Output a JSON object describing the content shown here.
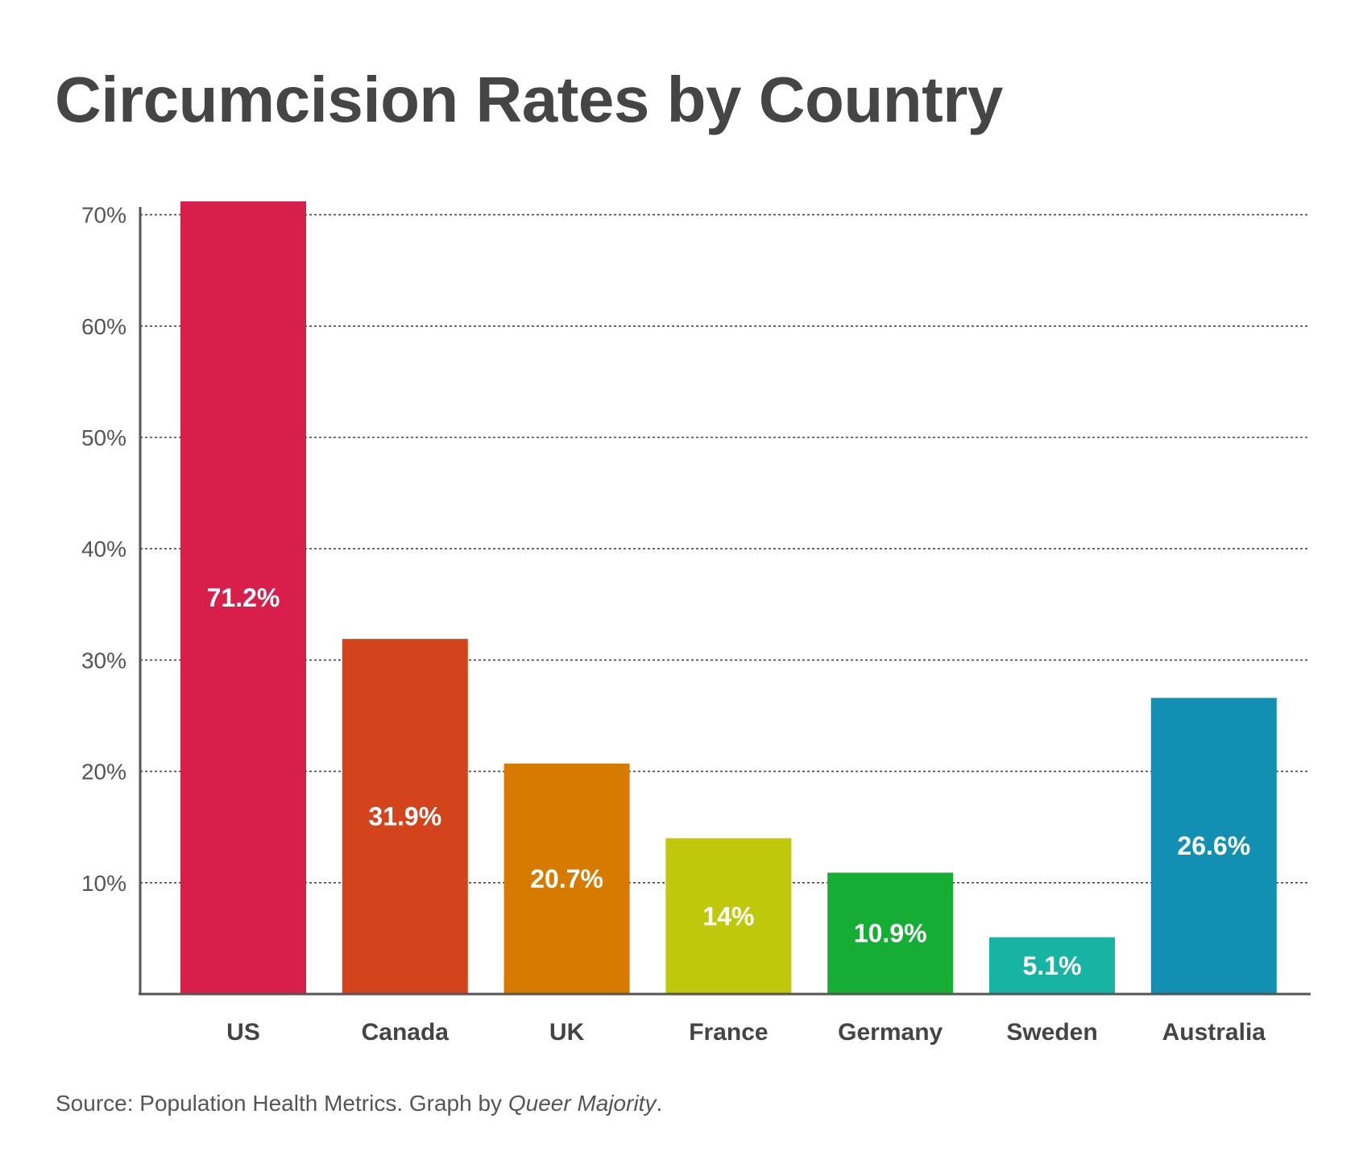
{
  "title": "Circumcision Rates by Country",
  "source": {
    "prefix": "Source: Population Health Metrics. Graph by ",
    "author": "Queer Majority",
    "suffix": "."
  },
  "chart_data": {
    "type": "bar",
    "categories": [
      "US",
      "Canada",
      "UK",
      "France",
      "Germany",
      "Sweden",
      "Australia"
    ],
    "values": [
      71.2,
      31.9,
      20.7,
      14,
      10.9,
      5.1,
      26.6
    ],
    "data_labels": [
      "71.2%",
      "31.9%",
      "20.7%",
      "14%",
      "10.9%",
      "5.1%",
      "26.6%"
    ],
    "colors": [
      "#d81e4b",
      "#d4441c",
      "#d67a00",
      "#c0c80c",
      "#16ad34",
      "#17b3a3",
      "#1290b3"
    ],
    "y_ticks": [
      10,
      20,
      30,
      40,
      50,
      60,
      70
    ],
    "y_tick_labels": [
      "10%",
      "20%",
      "30%",
      "40%",
      "50%",
      "60%",
      "70%"
    ],
    "ylim": [
      0,
      71.2
    ],
    "grid": "horizontal dotted",
    "legend": "none",
    "xlabel": "",
    "ylabel": ""
  }
}
